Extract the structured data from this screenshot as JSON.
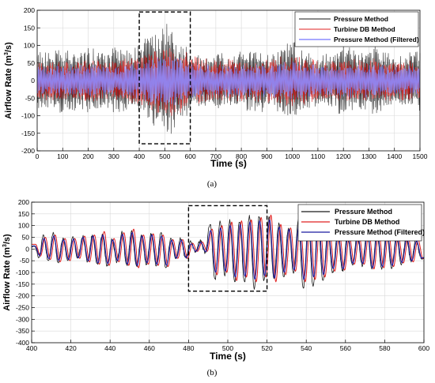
{
  "colors": {
    "pressure": "#1a1a1a",
    "turbine": "#e02020",
    "filtered_a": "#8c8cff",
    "filtered_b": "#1a1aa0",
    "grid": "#d9d9d9",
    "dashed_box": "#000000"
  },
  "chart_data": [
    {
      "panel_label": "(a)",
      "type": "line",
      "title": "",
      "xlabel": "Time (s)",
      "ylabel": "Airflow Rate (m³/s)",
      "ylabel_main": "Airflow Rate (m",
      "ylabel_sup": "3",
      "ylabel_tail": "/s)",
      "xlim": [
        0,
        1500
      ],
      "ylim": [
        -200,
        200
      ],
      "xticks": [
        0,
        100,
        200,
        300,
        400,
        500,
        600,
        700,
        800,
        900,
        1000,
        1100,
        1200,
        1300,
        1400,
        1500
      ],
      "yticks": [
        -200,
        -150,
        -100,
        -50,
        0,
        50,
        100,
        150,
        200
      ],
      "grid": true,
      "legend_position": "top-right",
      "highlight_box": {
        "x": [
          400,
          600
        ],
        "y": [
          -180,
          195
        ]
      },
      "series": [
        {
          "name": "Pressure Method",
          "style": "pressure",
          "x": [
            0,
            20,
            40,
            60,
            80,
            100,
            120,
            140,
            160,
            180,
            200,
            220,
            240,
            260,
            280,
            300,
            320,
            340,
            360,
            380,
            400,
            420,
            440,
            460,
            480,
            500,
            510,
            520,
            530,
            540,
            560,
            580,
            600,
            620,
            640,
            660,
            680,
            700,
            720,
            740,
            760,
            780,
            800,
            820,
            840,
            860,
            880,
            900,
            920,
            940,
            960,
            980,
            1000,
            1020,
            1040,
            1060,
            1080,
            1100,
            1120,
            1140,
            1160,
            1180,
            1200,
            1220,
            1240,
            1260,
            1280,
            1300,
            1320,
            1340,
            1360,
            1380,
            1400,
            1420,
            1440,
            1460,
            1480,
            1500
          ],
          "envelope": [
            90,
            80,
            85,
            75,
            100,
            95,
            85,
            90,
            80,
            85,
            95,
            90,
            85,
            75,
            80,
            95,
            100,
            90,
            80,
            95,
            100,
            115,
            125,
            135,
            140,
            160,
            175,
            150,
            165,
            130,
            120,
            110,
            85,
            80,
            75,
            80,
            70,
            75,
            80,
            75,
            70,
            75,
            90,
            95,
            100,
            85,
            90,
            80,
            75,
            90,
            95,
            105,
            120,
            95,
            85,
            80,
            75,
            70,
            80,
            85,
            75,
            90,
            100,
            95,
            90,
            85,
            80,
            95,
            100,
            90,
            85,
            80,
            75,
            70,
            80,
            85,
            80,
            90
          ]
        },
        {
          "name": "Turbine DB Method",
          "style": "turbine",
          "x": [
            0,
            100,
            200,
            300,
            400,
            500,
            550,
            600,
            700,
            800,
            900,
            1000,
            1100,
            1200,
            1300,
            1400,
            1500
          ],
          "envelope": [
            55,
            55,
            60,
            55,
            70,
            100,
            95,
            70,
            55,
            60,
            60,
            75,
            55,
            60,
            60,
            55,
            55
          ]
        },
        {
          "name": "Pressure Method (Filtered)",
          "style": "filtered_a",
          "x": [
            0,
            100,
            200,
            300,
            400,
            500,
            550,
            600,
            700,
            800,
            900,
            1000,
            1100,
            1200,
            1300,
            1400,
            1500
          ],
          "envelope": [
            40,
            40,
            45,
            40,
            50,
            75,
            70,
            50,
            40,
            45,
            45,
            55,
            40,
            45,
            45,
            40,
            40
          ]
        }
      ]
    },
    {
      "panel_label": "(b)",
      "type": "line",
      "title": "",
      "xlabel": "Time (s)",
      "ylabel": "Airflow Rate (m³/s)",
      "ylabel_main": "Airflow Rate (m",
      "ylabel_sup": "3",
      "ylabel_tail": "/s)",
      "xlim": [
        400,
        600
      ],
      "ylim": [
        -400,
        200
      ],
      "xticks": [
        400,
        420,
        440,
        460,
        480,
        500,
        520,
        540,
        560,
        580,
        600
      ],
      "yticks": [
        -400,
        -350,
        -300,
        -250,
        -200,
        -150,
        -100,
        -50,
        0,
        50,
        100,
        150,
        200
      ],
      "grid": true,
      "legend_position": "top-right",
      "highlight_box": {
        "x": [
          480,
          520
        ],
        "y": [
          -180,
          185
        ]
      },
      "series": [
        {
          "name": "Pressure Method",
          "style": "pressure",
          "peaks_x": [
            401.5,
            406,
            411,
            416,
            421,
            426,
            431,
            436,
            441,
            446,
            451,
            456,
            461,
            466,
            471,
            476,
            481,
            486,
            491,
            496,
            501,
            506,
            511,
            516,
            521,
            526,
            531,
            536,
            541,
            546,
            551,
            556,
            561,
            566,
            571,
            576,
            581,
            586,
            591,
            596
          ],
          "peaks_y": [
            10,
            55,
            65,
            45,
            50,
            55,
            60,
            60,
            40,
            70,
            75,
            60,
            65,
            70,
            45,
            45,
            30,
            35,
            110,
            115,
            120,
            120,
            140,
            140,
            140,
            105,
            95,
            120,
            115,
            125,
            70,
            70,
            60,
            60,
            75,
            70,
            75,
            55,
            50,
            40
          ],
          "troughs_y": [
            -35,
            -50,
            -55,
            -50,
            -40,
            -55,
            -65,
            -70,
            -55,
            -70,
            -75,
            -65,
            -70,
            -85,
            -40,
            -40,
            -10,
            -15,
            -130,
            -115,
            -140,
            -140,
            -170,
            -135,
            -130,
            -120,
            -100,
            -170,
            -165,
            -140,
            -100,
            -95,
            -70,
            -70,
            -90,
            -85,
            -80,
            -65,
            -55,
            -40
          ]
        },
        {
          "name": "Turbine DB Method",
          "style": "turbine",
          "peaks_x": [
            402,
            407,
            412,
            417,
            422,
            427,
            432,
            437,
            442,
            447,
            452,
            457,
            462,
            467,
            472,
            477,
            482,
            487,
            492,
            497,
            502,
            507,
            512,
            517,
            522,
            527,
            532,
            537,
            542,
            547,
            552,
            557,
            562,
            567,
            572,
            577,
            582,
            587,
            592,
            597
          ],
          "peaks_y": [
            20,
            50,
            60,
            45,
            45,
            55,
            60,
            75,
            45,
            70,
            85,
            60,
            65,
            60,
            40,
            40,
            25,
            30,
            85,
            100,
            115,
            120,
            125,
            135,
            145,
            105,
            90,
            110,
            115,
            120,
            70,
            60,
            55,
            55,
            70,
            75,
            70,
            55,
            50,
            40
          ],
          "troughs_y": [
            -30,
            -45,
            -55,
            -50,
            -40,
            -55,
            -65,
            -70,
            -55,
            -70,
            -80,
            -65,
            -70,
            -75,
            -40,
            -40,
            -10,
            -10,
            -110,
            -100,
            -135,
            -120,
            -140,
            -120,
            -140,
            -110,
            -95,
            -140,
            -130,
            -120,
            -95,
            -90,
            -65,
            -65,
            -85,
            -80,
            -75,
            -60,
            -55,
            -40
          ]
        },
        {
          "name": "Pressure Method (Filtered)",
          "style": "filtered_b",
          "peaks_x": [
            401.8,
            406.3,
            411.3,
            416.3,
            421.3,
            426.3,
            431.3,
            436.3,
            441.3,
            446.3,
            451.3,
            456.3,
            461.3,
            466.3,
            471.3,
            476.3,
            481.3,
            486.3,
            491.3,
            496.3,
            501.3,
            506.3,
            511.3,
            516.3,
            521.3,
            526.3,
            531.3,
            536.3,
            541.3,
            546.3,
            551.3,
            556.3,
            561.3,
            566.3,
            571.3,
            576.3,
            581.3,
            586.3,
            591.3,
            596.3
          ],
          "peaks_y": [
            12,
            45,
            55,
            40,
            42,
            50,
            55,
            60,
            40,
            62,
            70,
            55,
            60,
            55,
            38,
            38,
            22,
            28,
            80,
            90,
            100,
            105,
            115,
            120,
            125,
            95,
            85,
            105,
            100,
            110,
            60,
            58,
            52,
            52,
            65,
            65,
            65,
            50,
            45,
            35
          ],
          "troughs_y": [
            -28,
            -42,
            -50,
            -45,
            -38,
            -50,
            -60,
            -62,
            -50,
            -65,
            -70,
            -60,
            -65,
            -70,
            -38,
            -38,
            -10,
            -12,
            -100,
            -95,
            -120,
            -115,
            -130,
            -115,
            -125,
            -100,
            -90,
            -130,
            -120,
            -110,
            -85,
            -85,
            -62,
            -62,
            -80,
            -75,
            -70,
            -58,
            -50,
            -38
          ]
        }
      ]
    }
  ]
}
